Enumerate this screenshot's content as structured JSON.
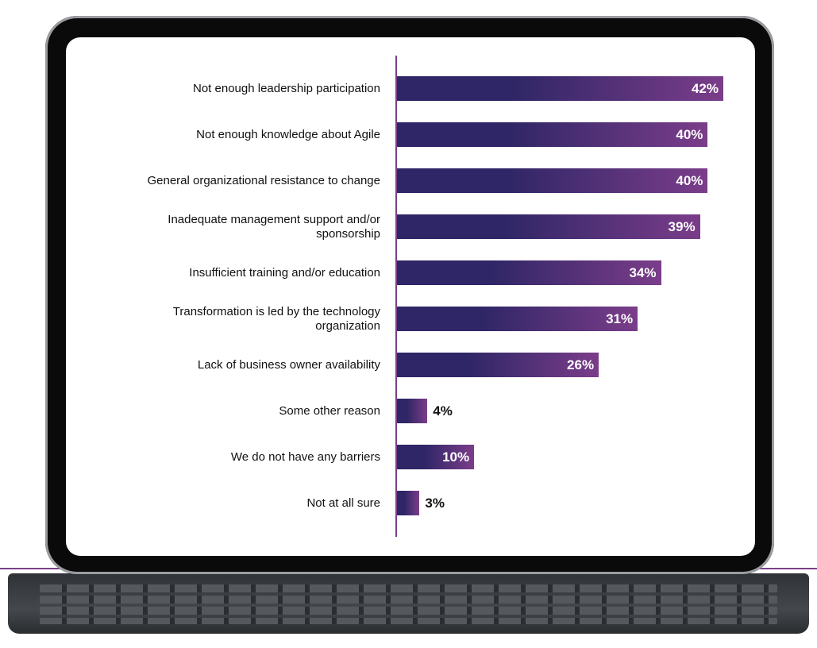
{
  "chart_data": {
    "type": "bar",
    "orientation": "horizontal",
    "categories": [
      "Not enough leadership participation",
      "Not enough knowledge about Agile",
      "General organizational resistance to change",
      "Inadequate management support and/or sponsorship",
      "Insufficient training and/or education",
      "Transformation is led by the technology organization",
      "Lack of business owner availability",
      "Some other reason",
      "We do not have any barriers",
      "Not at all sure"
    ],
    "values": [
      42,
      40,
      40,
      39,
      34,
      31,
      26,
      4,
      10,
      3
    ],
    "value_labels": [
      "42%",
      "40%",
      "40%",
      "39%",
      "34%",
      "31%",
      "26%",
      "4%",
      "10%",
      "3%"
    ],
    "colors": {
      "bar_start": "#2e2666",
      "bar_end": "#7b3d8a",
      "axis": "#7b3f8a"
    },
    "xlim": [
      0,
      42
    ],
    "grid": false
  }
}
